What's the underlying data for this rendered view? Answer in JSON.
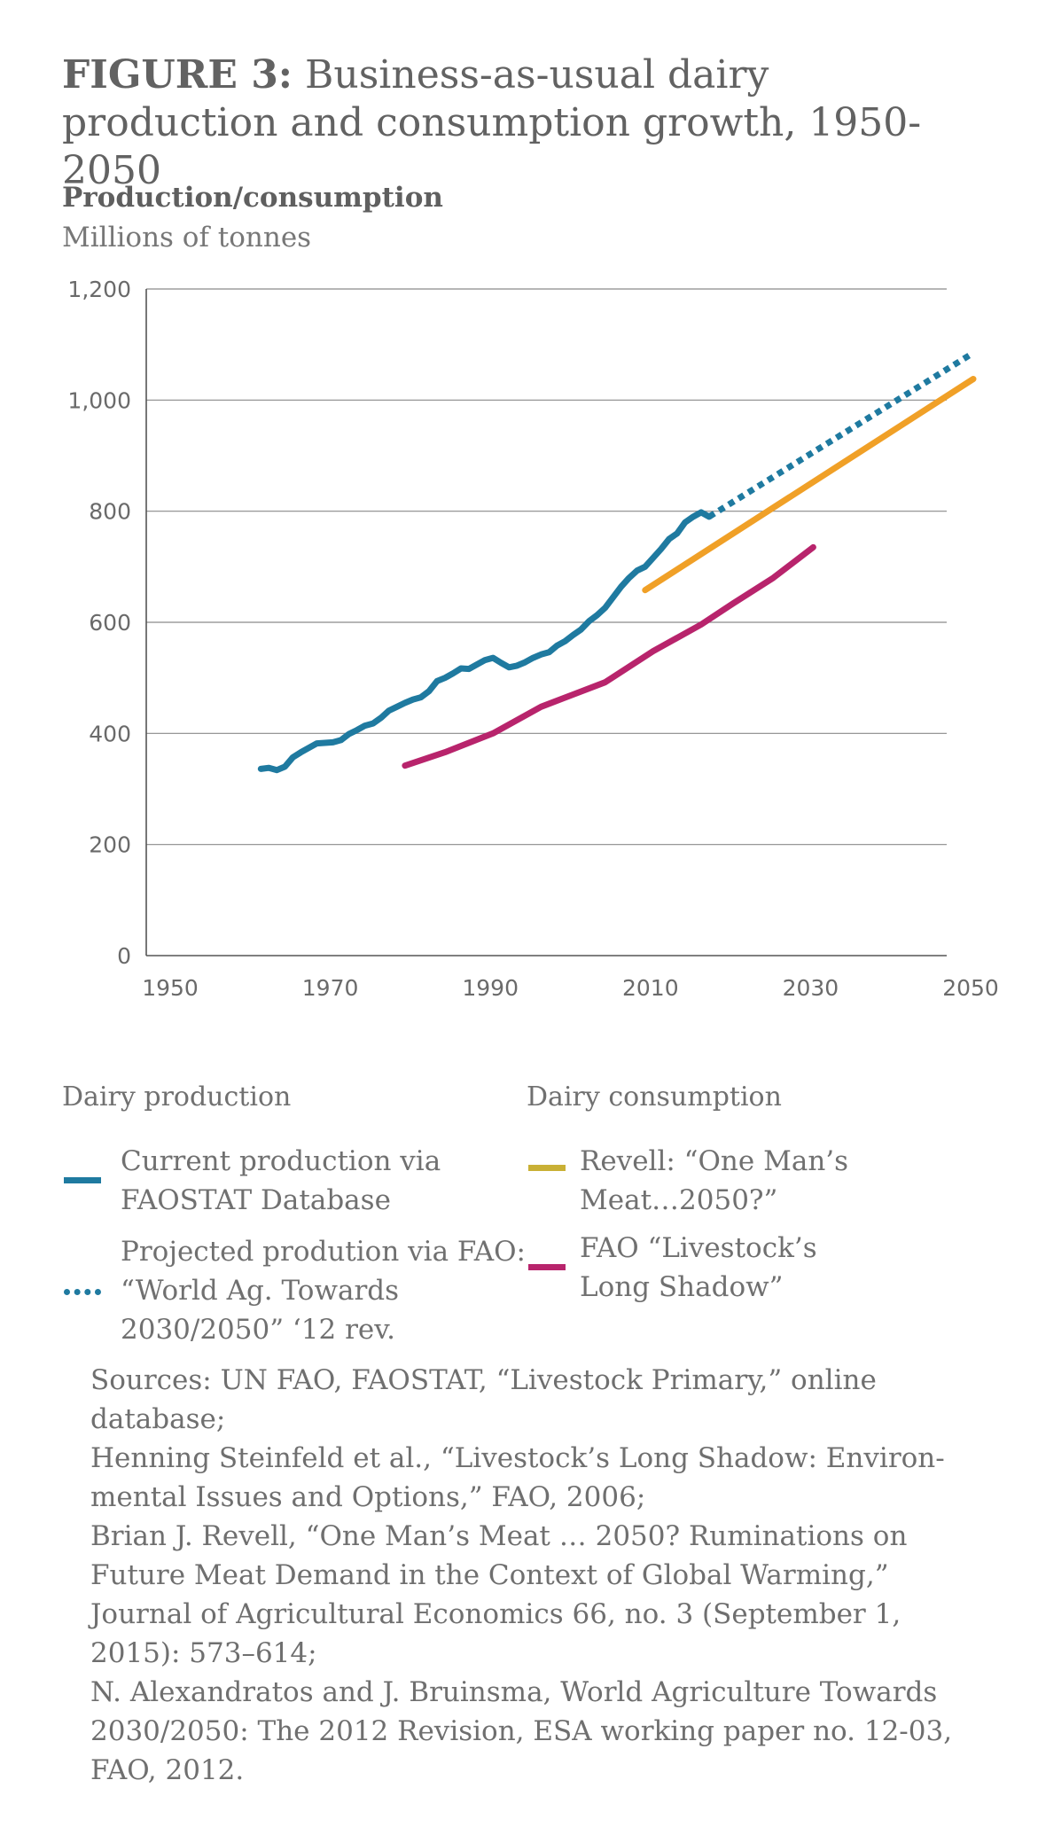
{
  "title": {
    "prefix": "FIGURE 3:",
    "text": "Business-as-usual dairy production and consumption growth, 1950-2050"
  },
  "y_axis": {
    "label": "Production/consumption",
    "unit": "Millions of tonnes"
  },
  "chart_data": {
    "type": "line",
    "xlim": [
      1950,
      2050
    ],
    "ylim": [
      0,
      1200
    ],
    "x_ticks": [
      "1950",
      "1970",
      "1990",
      "2010",
      "2030",
      "2050"
    ],
    "y_ticks": [
      "0",
      "200",
      "400",
      "600",
      "800",
      "1,000",
      "1,200"
    ],
    "grid": "horizontal",
    "legend_position": "bottom",
    "series": [
      {
        "name": "Current production via FAOSTAT Database",
        "color": "#1f7aa0",
        "style": "solid",
        "x": [
          1961,
          1962,
          1963,
          1964,
          1965,
          1966,
          1967,
          1968,
          1969,
          1970,
          1971,
          1972,
          1973,
          1974,
          1975,
          1976,
          1977,
          1978,
          1979,
          1980,
          1981,
          1982,
          1983,
          1984,
          1985,
          1986,
          1987,
          1988,
          1989,
          1990,
          1991,
          1992,
          1993,
          1994,
          1995,
          1996,
          1997,
          1998,
          1999,
          2000,
          2001,
          2002,
          2003,
          2004,
          2005,
          2006,
          2007,
          2008,
          2009,
          2010,
          2011,
          2012,
          2013,
          2014,
          2015,
          2016,
          2017
        ],
        "y": [
          336,
          338,
          334,
          340,
          357,
          366,
          374,
          382,
          383,
          384,
          388,
          399,
          406,
          414,
          418,
          428,
          441,
          448,
          455,
          461,
          465,
          476,
          494,
          500,
          508,
          517,
          516,
          524,
          532,
          536,
          527,
          519,
          522,
          528,
          536,
          542,
          546,
          558,
          566,
          577,
          587,
          602,
          613,
          626,
          645,
          664,
          680,
          693,
          700,
          716,
          732,
          750,
          760,
          780,
          790,
          798,
          790
        ]
      },
      {
        "name": "Projected prodution via FAO: “World Ag. Towards 2030/2050” ‘12 rev.",
        "color": "#1f7aa0",
        "style": "dotted",
        "x": [
          2017,
          2050
        ],
        "y": [
          790,
          1085
        ]
      },
      {
        "name": "Revell: “One Man’s Meat…2050?”",
        "color": "#f0a027",
        "legend_color": "#c9b035",
        "style": "solid",
        "x": [
          2009,
          2050
        ],
        "y": [
          658,
          1038
        ]
      },
      {
        "name": "FAO “Livestock’s Long Shadow”",
        "color": "#b8246c",
        "style": "solid",
        "x": [
          1979,
          1984,
          1990,
          1996,
          2000,
          2004,
          2010,
          2016,
          2020,
          2025,
          2030
        ],
        "y": [
          342,
          366,
          400,
          448,
          470,
          492,
          548,
          596,
          634,
          680,
          735
        ]
      }
    ]
  },
  "legend": {
    "production_heading": "Dairy production",
    "consumption_heading": "Dairy consumption",
    "items": [
      {
        "line1": "Current production via",
        "line2": "FAOSTAT Database"
      },
      {
        "line1": "Projected prodution via FAO:",
        "line2": "“World Ag. Towards",
        "line3": "2030/2050” ‘12 rev."
      },
      {
        "line1": "Revell: “One Man’s",
        "line2": "Meat…2050?”"
      },
      {
        "line1": "FAO “Livestock’s",
        "line2": "Long Shadow”"
      }
    ]
  },
  "sources": [
    "Sources: UN FAO, FAOSTAT, “Livestock Primary,” online database;",
    "Henning Steinfeld et al., “Livestock’s Long Shadow: Environ-mental Issues and Options,” FAO, 2006;",
    "Brian J. Revell, “One Man’s Meat … 2050? Ruminations on Future Meat Demand in the Context of Global Warming,” Journal of Agricultural Economics 66, no. 3 (September 1, 2015): 573–614;",
    "N. Alexandratos and J. Bruinsma, World Agriculture Towards 2030/2050: The 2012 Revision, ESA working paper no. 12-03, FAO, 2012."
  ]
}
